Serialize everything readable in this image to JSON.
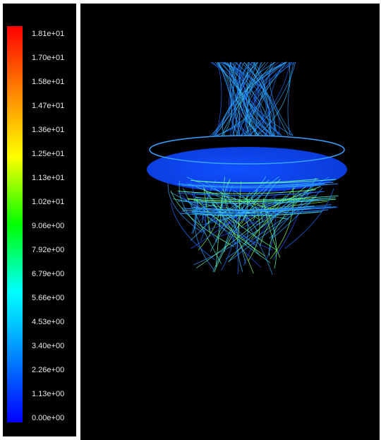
{
  "colorbar": {
    "labels": [
      "1.81e+01",
      "1.70e+01",
      "1.58e+01",
      "1.47e+01",
      "1.36e+01",
      "1.25e+01",
      "1.13e+01",
      "1.02e+01",
      "9.06e+00",
      "7.92e+00",
      "6.79e+00",
      "5.66e+00",
      "4.53e+00",
      "3.40e+00",
      "2.26e+00",
      "1.13e+00",
      "0.00e+00"
    ]
  }
}
